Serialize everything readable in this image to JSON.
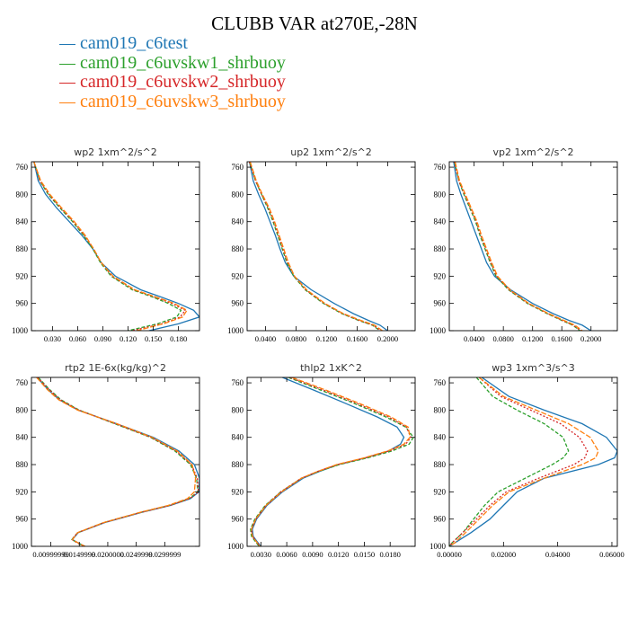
{
  "title": "CLUBB VAR at270E,-28N",
  "legend": [
    {
      "label": "cam019_c6test",
      "color": "#1f77b4"
    },
    {
      "label": "cam019_c6uvskw1_shrbuoy",
      "color": "#2ca02c"
    },
    {
      "label": "cam019_c6uvskw2_shrbuoy",
      "color": "#d62728"
    },
    {
      "label": "cam019_c6uvskw3_shrbuoy",
      "color": "#ff7f0e"
    }
  ],
  "chart_data": [
    {
      "type": "line",
      "title": "wp2  1xm^2/s^2",
      "xlim": [
        0.005,
        0.205
      ],
      "ylim": [
        1000,
        752
      ],
      "y_inverted": true,
      "xticks": [
        0.03,
        0.06,
        0.09,
        0.12,
        0.15,
        0.18
      ],
      "xtick_labels": [
        "0.030",
        "0.060",
        "0.090",
        "0.120",
        "0.150",
        "0.180"
      ],
      "yticks": [
        760,
        800,
        840,
        880,
        920,
        960,
        1000
      ],
      "y": [
        752,
        780,
        800,
        820,
        840,
        860,
        880,
        900,
        920,
        940,
        950,
        960,
        970,
        980,
        990,
        1000
      ],
      "series": [
        {
          "name": "cam019_c6test",
          "x": [
            0.008,
            0.013,
            0.022,
            0.035,
            0.05,
            0.065,
            0.078,
            0.088,
            0.105,
            0.135,
            0.158,
            0.18,
            0.198,
            0.205,
            0.18,
            0.145
          ]
        },
        {
          "name": "cam019_c6uvskw1_shrbuoy",
          "x": [
            0.008,
            0.015,
            0.025,
            0.039,
            0.054,
            0.067,
            0.078,
            0.087,
            0.1,
            0.125,
            0.148,
            0.168,
            0.183,
            0.178,
            0.155,
            0.12
          ]
        },
        {
          "name": "cam019_c6uvskw2_shrbuoy",
          "x": [
            0.008,
            0.015,
            0.026,
            0.04,
            0.055,
            0.068,
            0.079,
            0.088,
            0.101,
            0.127,
            0.15,
            0.172,
            0.188,
            0.182,
            0.16,
            0.125
          ]
        },
        {
          "name": "cam019_c6uvskw3_shrbuoy",
          "x": [
            0.008,
            0.016,
            0.027,
            0.041,
            0.056,
            0.069,
            0.079,
            0.088,
            0.102,
            0.128,
            0.152,
            0.175,
            0.19,
            0.185,
            0.162,
            0.13
          ]
        }
      ]
    },
    {
      "type": "line",
      "title": "up2  1xm^2/s^2",
      "xlim": [
        0.016,
        0.236
      ],
      "ylim": [
        1000,
        752
      ],
      "y_inverted": true,
      "xticks": [
        0.04,
        0.08,
        0.12,
        0.16,
        0.2
      ],
      "xtick_labels": [
        "0.0400",
        "0.0800",
        "0.1200",
        "0.1600",
        "0.2000"
      ],
      "yticks": [
        760,
        800,
        840,
        880,
        920,
        960,
        1000
      ],
      "y": [
        752,
        780,
        800,
        820,
        840,
        860,
        880,
        900,
        920,
        940,
        960,
        975,
        985,
        992,
        1000
      ],
      "series": [
        {
          "name": "cam019_c6test",
          "x": [
            0.019,
            0.024,
            0.031,
            0.039,
            0.046,
            0.053,
            0.059,
            0.066,
            0.077,
            0.1,
            0.13,
            0.155,
            0.175,
            0.19,
            0.2
          ]
        },
        {
          "name": "cam019_c6uvskw1_shrbuoy",
          "x": [
            0.019,
            0.027,
            0.035,
            0.043,
            0.05,
            0.056,
            0.062,
            0.068,
            0.077,
            0.092,
            0.116,
            0.14,
            0.162,
            0.18,
            0.19
          ]
        },
        {
          "name": "cam019_c6uvskw2_shrbuoy",
          "x": [
            0.019,
            0.027,
            0.035,
            0.044,
            0.051,
            0.057,
            0.063,
            0.069,
            0.078,
            0.093,
            0.117,
            0.141,
            0.163,
            0.181,
            0.191
          ]
        },
        {
          "name": "cam019_c6uvskw3_shrbuoy",
          "x": [
            0.02,
            0.028,
            0.036,
            0.045,
            0.052,
            0.058,
            0.064,
            0.07,
            0.078,
            0.094,
            0.118,
            0.142,
            0.165,
            0.183,
            0.193
          ]
        }
      ]
    },
    {
      "type": "line",
      "title": "vp2  1xm^2/s^2",
      "xlim": [
        0.006,
        0.236
      ],
      "ylim": [
        1000,
        752
      ],
      "y_inverted": true,
      "xticks": [
        0.04,
        0.08,
        0.12,
        0.16,
        0.2
      ],
      "xtick_labels": [
        "0.0400",
        "0.0800",
        "0.1200",
        "0.1600",
        "0.2000"
      ],
      "yticks": [
        760,
        800,
        840,
        880,
        920,
        960,
        1000
      ],
      "y": [
        752,
        780,
        800,
        820,
        840,
        860,
        880,
        900,
        920,
        940,
        960,
        975,
        985,
        992,
        1000
      ],
      "series": [
        {
          "name": "cam019_c6test",
          "x": [
            0.012,
            0.016,
            0.022,
            0.029,
            0.036,
            0.043,
            0.05,
            0.057,
            0.068,
            0.09,
            0.12,
            0.148,
            0.17,
            0.188,
            0.2
          ]
        },
        {
          "name": "cam019_c6uvskw1_shrbuoy",
          "x": [
            0.013,
            0.019,
            0.026,
            0.034,
            0.042,
            0.048,
            0.055,
            0.062,
            0.07,
            0.087,
            0.113,
            0.14,
            0.16,
            0.175,
            0.185
          ]
        },
        {
          "name": "cam019_c6uvskw2_shrbuoy",
          "x": [
            0.013,
            0.019,
            0.027,
            0.035,
            0.043,
            0.049,
            0.056,
            0.063,
            0.071,
            0.088,
            0.114,
            0.141,
            0.161,
            0.176,
            0.186
          ]
        },
        {
          "name": "cam019_c6uvskw3_shrbuoy",
          "x": [
            0.014,
            0.02,
            0.028,
            0.036,
            0.044,
            0.05,
            0.057,
            0.064,
            0.072,
            0.089,
            0.115,
            0.142,
            0.163,
            0.178,
            0.188
          ]
        }
      ]
    },
    {
      "type": "line",
      "title": "rtp2  1E-6x(kg/kg)^2",
      "xlim": [
        0.0066,
        0.0361
      ],
      "ylim": [
        1000,
        752
      ],
      "y_inverted": true,
      "xticks": [
        0.01,
        0.015,
        0.02,
        0.025,
        0.03
      ],
      "xtick_labels": [
        "0.00999999",
        "0.0149999",
        "0.0200000",
        "0.0249999",
        "0.0299999"
      ],
      "yticks": [
        760,
        800,
        840,
        880,
        920,
        960,
        1000
      ],
      "y": [
        752,
        770,
        785,
        800,
        820,
        840,
        860,
        880,
        900,
        920,
        930,
        940,
        950,
        965,
        980,
        990,
        995,
        1000
      ],
      "series": [
        {
          "name": "cam019_c6test",
          "x": [
            0.0076,
            0.0095,
            0.0115,
            0.0148,
            0.0215,
            0.028,
            0.0325,
            0.0352,
            0.0361,
            0.036,
            0.0345,
            0.031,
            0.026,
            0.0195,
            0.0148,
            0.0138,
            0.0148,
            0.016
          ]
        },
        {
          "name": "cam019_c6uvskw1_shrbuoy",
          "x": [
            0.0078,
            0.0098,
            0.0118,
            0.015,
            0.0212,
            0.0275,
            0.0318,
            0.0345,
            0.0356,
            0.0358,
            0.0343,
            0.0308,
            0.0258,
            0.0193,
            0.0147,
            0.0137,
            0.0147,
            0.0158
          ]
        },
        {
          "name": "cam019_c6uvskw2_shrbuoy",
          "x": [
            0.0077,
            0.0097,
            0.0117,
            0.0149,
            0.0213,
            0.0276,
            0.032,
            0.0347,
            0.0357,
            0.0359,
            0.0344,
            0.0309,
            0.0259,
            0.0194,
            0.0147,
            0.0137,
            0.0147,
            0.0159
          ]
        },
        {
          "name": "cam019_c6uvskw3_shrbuoy",
          "x": [
            0.0075,
            0.0094,
            0.0114,
            0.0147,
            0.0216,
            0.0278,
            0.0322,
            0.0348,
            0.0354,
            0.0352,
            0.034,
            0.0306,
            0.0257,
            0.0193,
            0.0147,
            0.0138,
            0.0148,
            0.016
          ]
        }
      ]
    },
    {
      "type": "line",
      "title": "thlp2  1xK^2",
      "xlim": [
        0.0014,
        0.0209
      ],
      "ylim": [
        1000,
        752
      ],
      "y_inverted": true,
      "xticks": [
        0.003,
        0.006,
        0.009,
        0.012,
        0.015,
        0.018
      ],
      "xtick_labels": [
        "0.0030",
        "0.0060",
        "0.0090",
        "0.0120",
        "0.0150",
        "0.0180"
      ],
      "yticks": [
        760,
        800,
        840,
        880,
        920,
        960,
        1000
      ],
      "y": [
        752,
        770,
        790,
        810,
        825,
        840,
        850,
        860,
        870,
        880,
        890,
        900,
        920,
        940,
        960,
        975,
        985,
        992,
        1000
      ],
      "series": [
        {
          "name": "cam019_c6test",
          "x": [
            0.0055,
            0.009,
            0.0128,
            0.0165,
            0.0188,
            0.0196,
            0.0192,
            0.0178,
            0.0152,
            0.012,
            0.0098,
            0.0079,
            0.0055,
            0.0037,
            0.0025,
            0.002,
            0.0021,
            0.0025,
            0.003
          ]
        },
        {
          "name": "cam019_c6uvskw1_shrbuoy",
          "x": [
            0.0062,
            0.0098,
            0.0138,
            0.0175,
            0.0198,
            0.0207,
            0.0202,
            0.0182,
            0.0154,
            0.0121,
            0.0097,
            0.0077,
            0.0053,
            0.0035,
            0.0023,
            0.0018,
            0.0019,
            0.0023,
            0.0028
          ]
        },
        {
          "name": "cam019_c6uvskw2_shrbuoy",
          "x": [
            0.0064,
            0.0101,
            0.0141,
            0.0178,
            0.0199,
            0.0204,
            0.0198,
            0.0179,
            0.0151,
            0.0119,
            0.0096,
            0.0077,
            0.0053,
            0.0036,
            0.0024,
            0.0019,
            0.002,
            0.0024,
            0.0029
          ]
        },
        {
          "name": "cam019_c6uvskw3_shrbuoy",
          "x": [
            0.0066,
            0.0104,
            0.0144,
            0.0181,
            0.0201,
            0.0203,
            0.0196,
            0.0177,
            0.015,
            0.0118,
            0.0096,
            0.0077,
            0.0054,
            0.0036,
            0.0024,
            0.0019,
            0.002,
            0.0024,
            0.0029
          ]
        }
      ]
    },
    {
      "type": "line",
      "title": "wp3  1xm^3/s^3",
      "xlim": [
        0.0,
        0.062
      ],
      "ylim": [
        1000,
        752
      ],
      "y_inverted": true,
      "xticks": [
        0.0,
        0.02,
        0.04,
        0.06
      ],
      "xtick_labels": [
        "0.00000",
        "0.02000",
        "0.04000",
        "0.06000"
      ],
      "yticks": [
        760,
        800,
        840,
        880,
        920,
        960,
        1000
      ],
      "y": [
        752,
        780,
        800,
        820,
        840,
        860,
        870,
        880,
        900,
        920,
        940,
        960,
        980,
        995,
        1000
      ],
      "series": [
        {
          "name": "cam019_c6test",
          "x": [
            0.012,
            0.022,
            0.035,
            0.049,
            0.058,
            0.062,
            0.061,
            0.055,
            0.035,
            0.025,
            0.02,
            0.015,
            0.008,
            0.002,
            0.0
          ]
        },
        {
          "name": "cam019_c6uvskw1_shrbuoy",
          "x": [
            0.01,
            0.016,
            0.025,
            0.035,
            0.042,
            0.044,
            0.042,
            0.038,
            0.028,
            0.018,
            0.013,
            0.009,
            0.005,
            0.001,
            0.0
          ]
        },
        {
          "name": "cam019_c6uvskw2_shrbuoy",
          "x": [
            0.011,
            0.019,
            0.03,
            0.041,
            0.048,
            0.051,
            0.05,
            0.046,
            0.033,
            0.021,
            0.015,
            0.01,
            0.005,
            0.001,
            0.0
          ]
        },
        {
          "name": "cam019_c6uvskw3_shrbuoy",
          "x": [
            0.011,
            0.02,
            0.032,
            0.044,
            0.052,
            0.055,
            0.054,
            0.049,
            0.035,
            0.022,
            0.016,
            0.011,
            0.006,
            0.002,
            0.0
          ]
        }
      ]
    }
  ]
}
